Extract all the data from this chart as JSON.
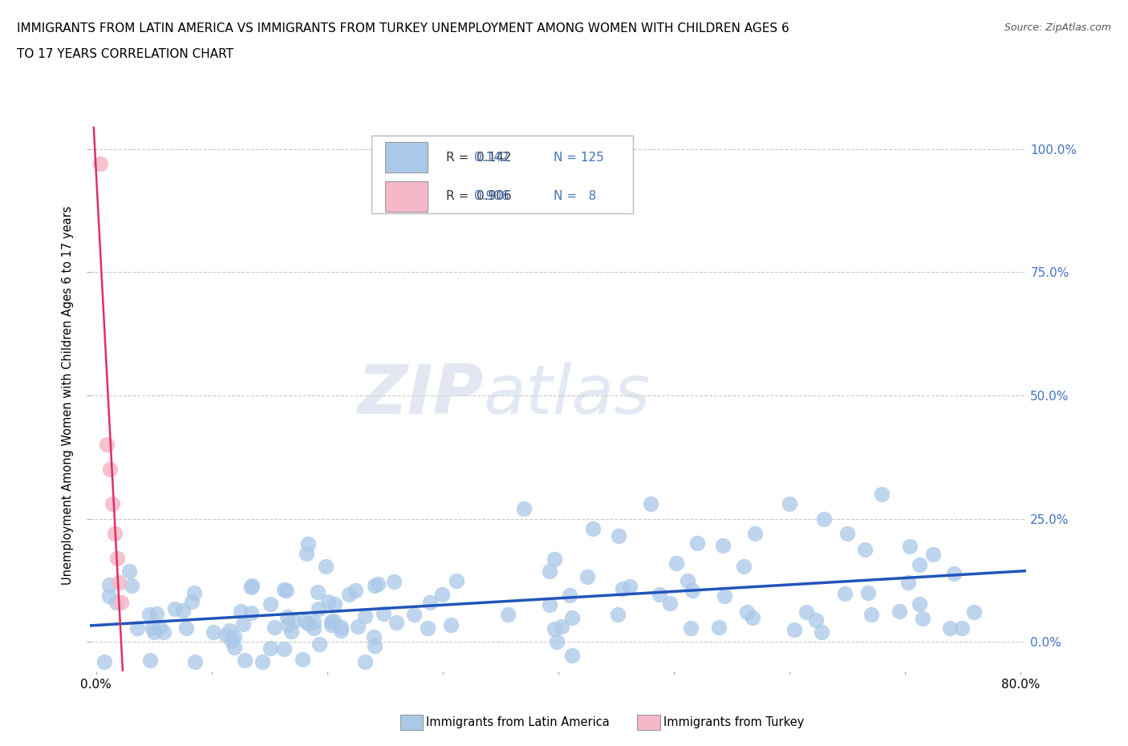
{
  "title_line1": "IMMIGRANTS FROM LATIN AMERICA VS IMMIGRANTS FROM TURKEY UNEMPLOYMENT AMONG WOMEN WITH CHILDREN AGES 6",
  "title_line2": "TO 17 YEARS CORRELATION CHART",
  "source": "Source: ZipAtlas.com",
  "ylabel": "Unemployment Among Women with Children Ages 6 to 17 years",
  "xlim": [
    -0.005,
    0.805
  ],
  "ylim": [
    -0.06,
    1.06
  ],
  "xticks": [
    0.0,
    0.1,
    0.2,
    0.3,
    0.4,
    0.5,
    0.6,
    0.7,
    0.8
  ],
  "xticklabels": [
    "0.0%",
    "",
    "",
    "",
    "",
    "",
    "",
    "",
    "80.0%"
  ],
  "yticks_left": [
    0.0,
    0.25,
    0.5,
    0.75,
    1.0
  ],
  "yticklabels_left": [
    "",
    "",
    "",
    "",
    ""
  ],
  "yticks_right": [
    0.0,
    0.25,
    0.5,
    0.75,
    1.0
  ],
  "yticklabels_right": [
    "0.0%",
    "25.0%",
    "50.0%",
    "75.0%",
    "100.0%"
  ],
  "legend_R_blue": "0.142",
  "legend_N_blue": "125",
  "legend_R_pink": "0.906",
  "legend_N_pink": "8",
  "legend_label_blue": "Immigrants from Latin America",
  "legend_label_pink": "Immigrants from Turkey",
  "dot_color_blue": "#aac8e8",
  "dot_color_pink": "#f5b8c8",
  "line_color_blue": "#2255bb",
  "line_color_pink": "#e03060",
  "watermark_zip": "ZIP",
  "watermark_atlas": "atlas",
  "background_color": "#ffffff",
  "grid_color": "#bbbbbb",
  "figsize": [
    14.06,
    9.3
  ],
  "dpi": 100
}
